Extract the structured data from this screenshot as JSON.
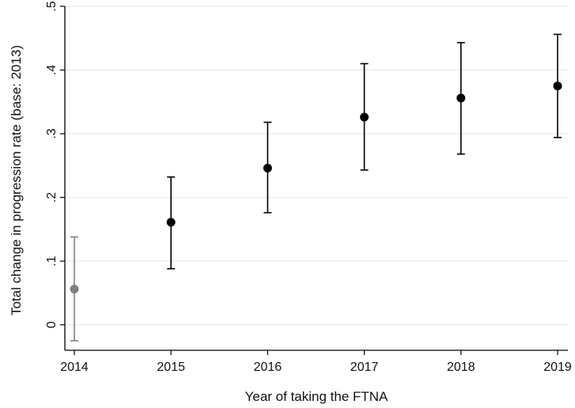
{
  "chart_data": {
    "type": "scatter",
    "title": "",
    "xlabel": "Year of taking the FTNA",
    "ylabel": "Total change in progression rate (base: 2013)",
    "x_ticks": [
      "2014",
      "2015",
      "2016",
      "2017",
      "2018",
      "2019"
    ],
    "y_ticks": [
      "0",
      ".1",
      ".2",
      ".3",
      ".4",
      ".5"
    ],
    "ylim": [
      -0.04,
      0.5
    ],
    "grid": true,
    "series": [
      {
        "points": [
          {
            "x": "2014",
            "y": 0.056,
            "ci_low": -0.025,
            "ci_high": 0.138,
            "color": "#808080"
          },
          {
            "x": "2015",
            "y": 0.161,
            "ci_low": 0.088,
            "ci_high": 0.232,
            "color": "#000000"
          },
          {
            "x": "2016",
            "y": 0.246,
            "ci_low": 0.176,
            "ci_high": 0.318,
            "color": "#000000"
          },
          {
            "x": "2017",
            "y": 0.326,
            "ci_low": 0.243,
            "ci_high": 0.41,
            "color": "#000000"
          },
          {
            "x": "2018",
            "y": 0.356,
            "ci_low": 0.268,
            "ci_high": 0.443,
            "color": "#000000"
          },
          {
            "x": "2019",
            "y": 0.375,
            "ci_low": 0.294,
            "ci_high": 0.456,
            "color": "#000000"
          }
        ]
      }
    ]
  }
}
